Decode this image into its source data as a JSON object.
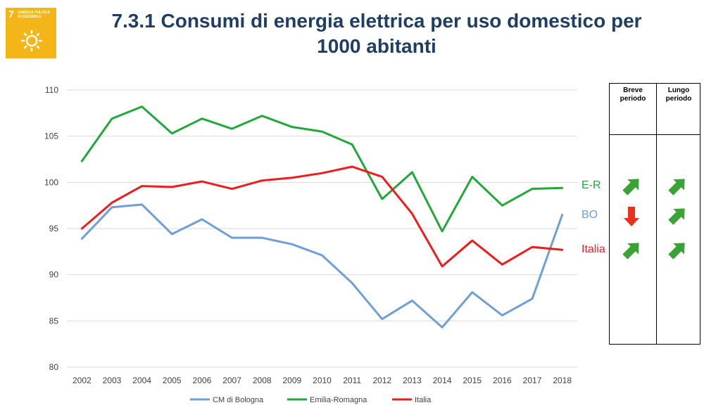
{
  "sdg": {
    "number": "7",
    "text": "ENERGIA PULITA E ACCESSIBILE"
  },
  "title_line1": "7.3.1 Consumi di energia elettrica per uso domestico per",
  "title_line2": "1000 abitanti",
  "table": {
    "header_short": "Breve periodo",
    "header_long": "Lungo periodo",
    "rows": [
      {
        "label": "E-R",
        "color": "#22a83a",
        "short": "up",
        "long": "up"
      },
      {
        "label": "BO",
        "color": "#6f9fd8",
        "short": "down",
        "long": "up"
      },
      {
        "label": "Italia",
        "color": "#ee1c1c",
        "short": "up",
        "long": "up"
      }
    ]
  },
  "chart_data": {
    "type": "line",
    "x": [
      "2002",
      "2003",
      "2004",
      "2005",
      "2006",
      "2007",
      "2008",
      "2009",
      "2010",
      "2011",
      "2012",
      "2013",
      "2014",
      "2015",
      "2016",
      "2017",
      "2018"
    ],
    "ylim": [
      80,
      110
    ],
    "yticks": [
      80,
      85,
      90,
      95,
      100,
      105,
      110
    ],
    "grid": true,
    "legend_position": "bottom",
    "series": [
      {
        "name": "CM di Bologna",
        "color": "#6f9fd8",
        "values": [
          93.9,
          97.3,
          97.6,
          94.4,
          96.0,
          94.0,
          94.0,
          93.3,
          92.1,
          89.1,
          85.2,
          87.2,
          84.3,
          88.1,
          85.6,
          87.4,
          96.5
        ]
      },
      {
        "name": "Emilia-Romagna",
        "color": "#22a83a",
        "values": [
          102.3,
          106.9,
          108.2,
          105.3,
          106.9,
          105.8,
          107.2,
          106.0,
          105.5,
          104.1,
          98.2,
          101.1,
          94.7,
          100.6,
          97.5,
          99.3,
          99.4
        ]
      },
      {
        "name": "Italia",
        "color": "#ee1c1c",
        "values": [
          95.0,
          97.8,
          99.6,
          99.5,
          100.1,
          99.3,
          100.2,
          100.5,
          101.0,
          101.7,
          100.6,
          96.6,
          90.9,
          93.7,
          91.1,
          93.0,
          92.7
        ]
      }
    ]
  }
}
